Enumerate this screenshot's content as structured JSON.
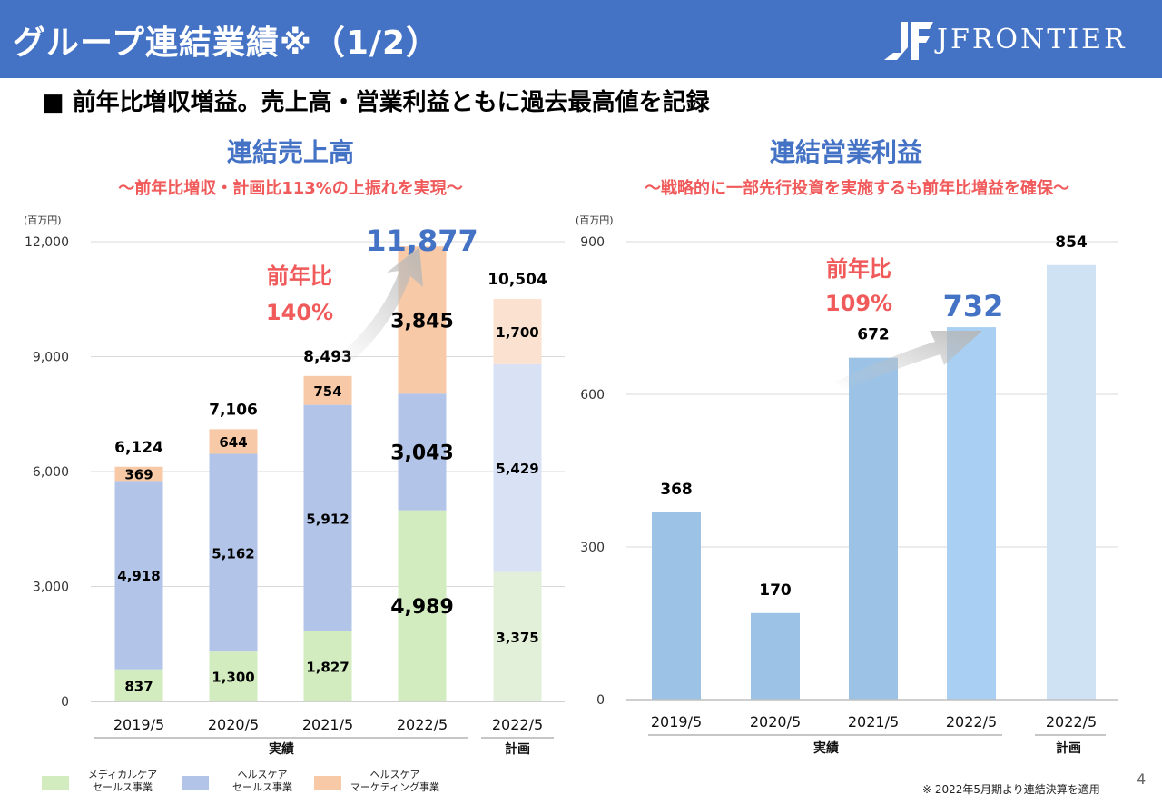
{
  "header": {
    "title": "グループ連結業績※（1/2）",
    "logo_text": "JFRONTIER",
    "bg_color": "#4472c4"
  },
  "subtitle": "■ 前年比増収増益。売上高・営業利益ともに過去最高値を記録",
  "chart_data": [
    {
      "type": "bar",
      "stacked": true,
      "title": "連結売上高",
      "subtitle": "～前年比増収・計画比113%の上振れを実現～",
      "unit": "(百万円)",
      "categories": [
        "2019/5",
        "2020/5",
        "2021/5",
        "2022/5",
        "2022/5"
      ],
      "group_labels": [
        "実績",
        "計画"
      ],
      "ylim": [
        0,
        12000
      ],
      "yticks": [
        "0",
        "3,000",
        "6,000",
        "9,000",
        "12,000"
      ],
      "ytick_values": [
        0,
        3000,
        6000,
        9000,
        12000
      ],
      "series": [
        {
          "name": "メディカルケアセールス事業",
          "values": [
            837,
            1300,
            1827,
            4989,
            3375
          ],
          "labels": [
            "837",
            "1,300",
            "1,827",
            "4,989",
            "3,375"
          ]
        },
        {
          "name": "ヘルスケアセールス事業",
          "values": [
            4918,
            5162,
            5912,
            3043,
            5429
          ],
          "labels": [
            "4,918",
            "5,162",
            "5,912",
            "3,043",
            "5,429"
          ]
        },
        {
          "name": "ヘルスケアマーケティング事業",
          "values": [
            369,
            644,
            754,
            3845,
            1700
          ],
          "labels": [
            "369",
            "644",
            "754",
            "3,845",
            "1,700"
          ]
        }
      ],
      "totals": [
        6124,
        7106,
        8493,
        11877,
        10504
      ],
      "total_labels": [
        "6,124",
        "7,106",
        "8,493",
        "11,877",
        "10,504"
      ],
      "annotation": {
        "line1": "前年比",
        "line2": "140%"
      }
    },
    {
      "type": "bar",
      "title": "連結営業利益",
      "subtitle": "～戦略的に一部先行投資を実施するも前年比増益を確保～",
      "unit": "(百万円)",
      "categories": [
        "2019/5",
        "2020/5",
        "2021/5",
        "2022/5",
        "2022/5"
      ],
      "group_labels": [
        "実績",
        "計画"
      ],
      "ylim": [
        0,
        900
      ],
      "yticks": [
        "0",
        "300",
        "600",
        "900"
      ],
      "ytick_values": [
        0,
        300,
        600,
        900
      ],
      "values": [
        368,
        170,
        672,
        732,
        854
      ],
      "value_labels": [
        "368",
        "170",
        "672",
        "732",
        "854"
      ],
      "annotation": {
        "line1": "前年比",
        "line2": "109%"
      }
    }
  ],
  "legend": [
    {
      "line1": "メディカルケア",
      "line2": "セールス事業",
      "color": "#d2ecbf"
    },
    {
      "line1": "ヘルスケア",
      "line2": "セールス事業",
      "color": "#b2c5e8"
    },
    {
      "line1": "ヘルスケア",
      "line2": "マーケティング事業",
      "color": "#f7c9a6"
    }
  ],
  "colors": {
    "medical_actual": "#d2ecbf",
    "health_actual": "#b2c5e8",
    "marketing_actual": "#f7c9a6",
    "medical_plan": "#e2efd9",
    "health_plan": "#d8e2f4",
    "marketing_plan": "#fbe1cf",
    "profit_actual": "#9cc3e6",
    "profit_highlight": "#a9cff2",
    "profit_plan": "#cfe2f3",
    "accent_blue": "#4472c4",
    "accent_red": "#f05a5a"
  },
  "note": "※ 2022年5月期より連結決算を適用",
  "page_number": "4"
}
